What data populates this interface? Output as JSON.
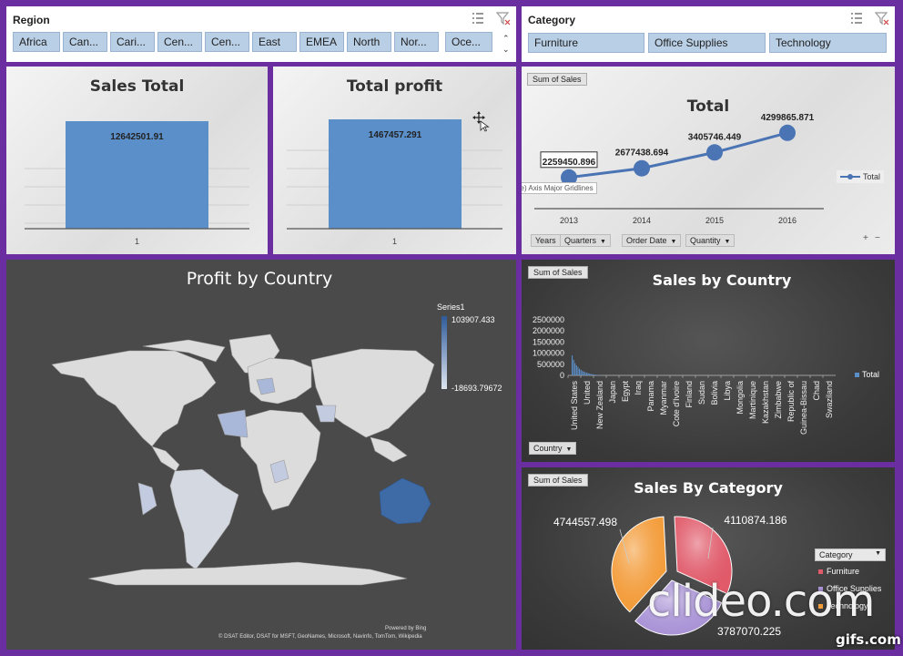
{
  "region_slicer": {
    "title": "Region",
    "items": [
      "Africa",
      "Can...",
      "Cari...",
      "Cen...",
      "Cen...",
      "East",
      "EMEA",
      "North",
      "Nor...",
      "Oce..."
    ]
  },
  "category_slicer": {
    "title": "Category",
    "items": [
      "Furniture",
      "Office Supplies",
      "Technology"
    ]
  },
  "sales_total": {
    "title": "Sales Total",
    "value_label": "12642501.91",
    "x_label": "1"
  },
  "total_profit": {
    "title": "Total profit",
    "value_label": "1467457.291",
    "x_label": "1",
    "tooltip": "Vertical (Value) Axis Major Gridlines"
  },
  "sales_by_year": {
    "field_button": "Sum of Sales",
    "title": "Total",
    "legend": "Total",
    "filters": [
      "Years",
      "Quarters",
      "Order Date",
      "Quantity"
    ],
    "zoom_plus": "+",
    "zoom_minus": "−"
  },
  "profit_by_country": {
    "title": "Profit by Country",
    "legend_series": "Series1",
    "legend_max": "103907.433",
    "legend_min": "-18693.79672",
    "powered_by": "Powered by Bing",
    "credits": "© DSAT Editor, DSAT for MSFT, GeoNames, Microsoft, Navinfo, TomTom, Wikipedia"
  },
  "sales_by_country": {
    "field_button": "Sum of Sales",
    "title": "Sales by Country",
    "legend": "Total",
    "filter": "Country"
  },
  "sales_by_category": {
    "field_button": "Sum of Sales",
    "title": "Sales By Category",
    "legend_filter": "Category",
    "legend_items": [
      "Furniture",
      "Office Supplies",
      "Technology"
    ]
  },
  "watermarks": {
    "clideo": "clideo.com",
    "gifs": "gifs.com"
  },
  "colors": {
    "frame": "#6a2ea0",
    "slicer_button": "#b9cfe6",
    "bar": "#5b8fc9",
    "line": "#4a74b4",
    "map_land": "#dcdcdc",
    "map_high": "#3e6aa6",
    "pie_furniture": "#e05a6a",
    "pie_office": "#a993d6",
    "pie_technology": "#f39c3a"
  },
  "chart_data": [
    {
      "type": "bar",
      "title": "Sales Total",
      "categories": [
        "1"
      ],
      "values": [
        12642501.91
      ]
    },
    {
      "type": "bar",
      "title": "Total profit",
      "categories": [
        "1"
      ],
      "values": [
        1467457.291
      ]
    },
    {
      "type": "line",
      "title": "Total",
      "x": [
        "2013",
        "2014",
        "2015",
        "2016"
      ],
      "series": [
        {
          "name": "Total",
          "values": [
            2259450.896,
            2677438.694,
            3405746.449,
            4299865.871
          ]
        }
      ],
      "legend": "right"
    },
    {
      "type": "bar",
      "title": "Sales by Country",
      "categories": [
        "United States",
        "United",
        "New Zealand",
        "Japan",
        "Egypt",
        "Iraq",
        "Panama",
        "Myanmar",
        "Cote d'Ivoire",
        "Finland",
        "Sudan",
        "Bolivia",
        "Libya",
        "Mongolia",
        "Martinique",
        "Kazakhstan",
        "Zimbabwe",
        "Republic of",
        "Guinea-Bissau",
        "Chad",
        "Swaziland"
      ],
      "y_ticks": [
        "0",
        "500000",
        "1000000",
        "1500000",
        "2000000",
        "2500000"
      ],
      "ylim": [
        0,
        2500000
      ],
      "series": [
        {
          "name": "Total",
          "values": [
            900000,
            700000,
            550000,
            450000,
            380000,
            300000,
            250000,
            200000,
            170000,
            140000,
            120000,
            100000,
            80000,
            65000,
            50000,
            40000,
            30000,
            22000,
            15000,
            9000,
            5000
          ]
        }
      ],
      "legend": "right"
    },
    {
      "type": "pie",
      "title": "Sales By Category",
      "categories": [
        "Furniture",
        "Office Supplies",
        "Technology"
      ],
      "values": [
        4110874.186,
        3787070.225,
        4744557.498
      ],
      "labels": [
        "4110874.186",
        "3787070.225",
        "4744557.498"
      ]
    }
  ]
}
